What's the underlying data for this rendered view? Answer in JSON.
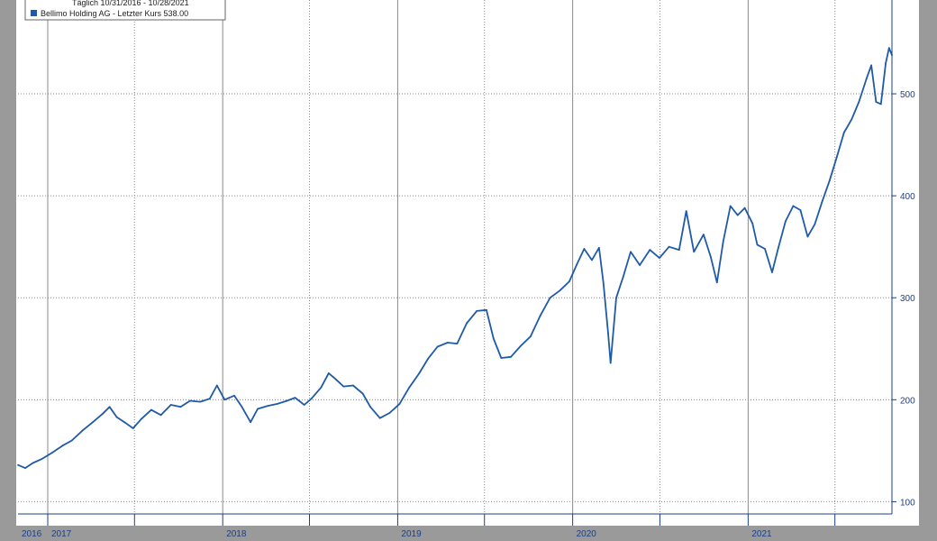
{
  "chart_data": {
    "type": "line",
    "legend": {
      "period_line": "Täglich 10/31/2016 - 10/28/2021",
      "series_line": "Bellimo Holding AG - Letzter Kurs 538.00",
      "placement": "top-left"
    },
    "x_ticks": [
      "2016",
      "2017",
      "2018",
      "2019",
      "2020",
      "2021"
    ],
    "y_ticks": [
      100,
      200,
      300,
      400,
      500
    ],
    "xlim": [
      "2016-10-31",
      "2021-10-28"
    ],
    "ylim": [
      88,
      592
    ],
    "grid": true,
    "series": [
      {
        "name": "Bellimo Holding AG - Letzter Kurs 538.00",
        "color": "#1f5aa8",
        "points": [
          [
            "2016-10-31",
            136
          ],
          [
            "2016-11-15",
            133
          ],
          [
            "2016-12-01",
            138
          ],
          [
            "2016-12-20",
            142
          ],
          [
            "2017-01-10",
            148
          ],
          [
            "2017-02-01",
            155
          ],
          [
            "2017-02-20",
            160
          ],
          [
            "2017-03-15",
            170
          ],
          [
            "2017-04-05",
            178
          ],
          [
            "2017-04-25",
            186
          ],
          [
            "2017-05-10",
            193
          ],
          [
            "2017-05-25",
            183
          ],
          [
            "2017-06-10",
            178
          ],
          [
            "2017-06-28",
            172
          ],
          [
            "2017-07-15",
            181
          ],
          [
            "2017-08-05",
            190
          ],
          [
            "2017-08-25",
            185
          ],
          [
            "2017-09-15",
            195
          ],
          [
            "2017-10-05",
            193
          ],
          [
            "2017-10-25",
            199
          ],
          [
            "2017-11-15",
            198
          ],
          [
            "2017-12-05",
            201
          ],
          [
            "2017-12-20",
            214
          ],
          [
            "2018-01-05",
            200
          ],
          [
            "2018-01-25",
            204
          ],
          [
            "2018-02-10",
            193
          ],
          [
            "2018-02-28",
            178
          ],
          [
            "2018-03-15",
            191
          ],
          [
            "2018-04-05",
            194
          ],
          [
            "2018-04-25",
            196
          ],
          [
            "2018-05-15",
            199
          ],
          [
            "2018-06-01",
            202
          ],
          [
            "2018-06-20",
            195
          ],
          [
            "2018-07-05",
            201
          ],
          [
            "2018-07-25",
            212
          ],
          [
            "2018-08-10",
            226
          ],
          [
            "2018-08-25",
            220
          ],
          [
            "2018-09-10",
            213
          ],
          [
            "2018-09-30",
            214
          ],
          [
            "2018-10-20",
            206
          ],
          [
            "2018-11-05",
            193
          ],
          [
            "2018-11-25",
            182
          ],
          [
            "2018-12-15",
            187
          ],
          [
            "2019-01-05",
            196
          ],
          [
            "2019-01-25",
            212
          ],
          [
            "2019-02-15",
            226
          ],
          [
            "2019-03-05",
            240
          ],
          [
            "2019-03-25",
            252
          ],
          [
            "2019-04-15",
            256
          ],
          [
            "2019-05-05",
            255
          ],
          [
            "2019-05-25",
            275
          ],
          [
            "2019-06-15",
            287
          ],
          [
            "2019-07-05",
            288
          ],
          [
            "2019-07-20",
            260
          ],
          [
            "2019-08-05",
            241
          ],
          [
            "2019-08-25",
            242
          ],
          [
            "2019-09-15",
            253
          ],
          [
            "2019-10-05",
            262
          ],
          [
            "2019-10-25",
            282
          ],
          [
            "2019-11-15",
            300
          ],
          [
            "2019-12-05",
            307
          ],
          [
            "2019-12-25",
            316
          ],
          [
            "2020-01-10",
            333
          ],
          [
            "2020-01-25",
            348
          ],
          [
            "2020-02-10",
            337
          ],
          [
            "2020-02-25",
            349
          ],
          [
            "2020-03-05",
            315
          ],
          [
            "2020-03-15",
            265
          ],
          [
            "2020-03-20",
            236
          ],
          [
            "2020-04-01",
            300
          ],
          [
            "2020-04-15",
            320
          ],
          [
            "2020-05-01",
            345
          ],
          [
            "2020-05-20",
            332
          ],
          [
            "2020-06-10",
            347
          ],
          [
            "2020-06-30",
            339
          ],
          [
            "2020-07-20",
            350
          ],
          [
            "2020-08-10",
            347
          ],
          [
            "2020-08-25",
            385
          ],
          [
            "2020-09-10",
            345
          ],
          [
            "2020-09-30",
            362
          ],
          [
            "2020-10-15",
            340
          ],
          [
            "2020-10-28",
            315
          ],
          [
            "2020-11-10",
            355
          ],
          [
            "2020-11-25",
            390
          ],
          [
            "2020-12-10",
            381
          ],
          [
            "2020-12-25",
            388
          ],
          [
            "2021-01-10",
            373
          ],
          [
            "2021-01-20",
            352
          ],
          [
            "2021-02-05",
            348
          ],
          [
            "2021-02-20",
            325
          ],
          [
            "2021-03-05",
            349
          ],
          [
            "2021-03-20",
            375
          ],
          [
            "2021-04-05",
            390
          ],
          [
            "2021-04-20",
            386
          ],
          [
            "2021-05-05",
            360
          ],
          [
            "2021-05-20",
            372
          ],
          [
            "2021-06-05",
            395
          ],
          [
            "2021-06-20",
            415
          ],
          [
            "2021-07-05",
            438
          ],
          [
            "2021-07-20",
            462
          ],
          [
            "2021-08-05",
            475
          ],
          [
            "2021-08-20",
            492
          ],
          [
            "2021-09-05",
            515
          ],
          [
            "2021-09-15",
            528
          ],
          [
            "2021-09-25",
            492
          ],
          [
            "2021-10-05",
            490
          ],
          [
            "2021-10-15",
            530
          ],
          [
            "2021-10-22",
            545
          ],
          [
            "2021-10-28",
            538
          ]
        ]
      }
    ]
  }
}
